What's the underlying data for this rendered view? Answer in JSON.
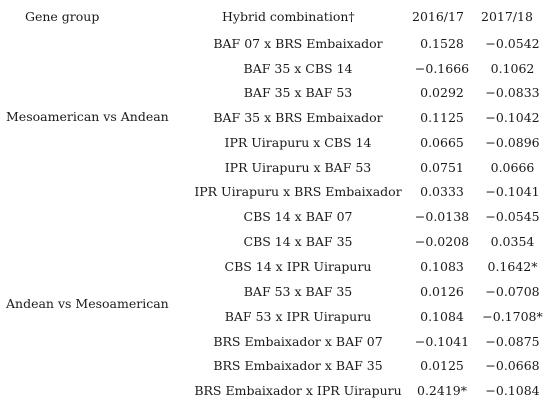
{
  "header": {
    "gene_group": "Gene group",
    "hybrid_combination": "Hybrid combination†",
    "year1": "2016/17",
    "year2": "2017/18"
  },
  "groups": [
    {
      "label": "Mesoamerican vs Andean"
    },
    {
      "label": "Andean vs Mesoamerican"
    }
  ],
  "rows": [
    {
      "hybrid": "BAF 07 x BRS Embaixador",
      "y1": "0.1528",
      "y2": "−0.0542"
    },
    {
      "hybrid": "BAF 35 x CBS 14",
      "y1": "−0.1666",
      "y2": "0.1062"
    },
    {
      "hybrid": "BAF 35 x BAF 53",
      "y1": "0.0292",
      "y2": "−0.0833"
    },
    {
      "hybrid": "BAF 35 x BRS Embaixador",
      "y1": "0.1125",
      "y2": "−0.1042"
    },
    {
      "hybrid": "IPR Uirapuru x CBS 14",
      "y1": "0.0665",
      "y2": "−0.0896"
    },
    {
      "hybrid": "IPR Uirapuru x BAF 53",
      "y1": "0.0751",
      "y2": "0.0666"
    },
    {
      "hybrid": "IPR Uirapuru x BRS Embaixador",
      "y1": "0.0333",
      "y2": "−0.1041"
    },
    {
      "hybrid": "CBS 14 x BAF 07",
      "y1": "−0.0138",
      "y2": "−0.0545"
    },
    {
      "hybrid": "CBS 14 x BAF 35",
      "y1": "−0.0208",
      "y2": "0.0354"
    },
    {
      "hybrid": "CBS 14 x IPR Uirapuru",
      "y1": "0.1083",
      "y2": "0.1642*"
    },
    {
      "hybrid": "BAF 53 x BAF 35",
      "y1": "0.0126",
      "y2": "−0.0708"
    },
    {
      "hybrid": "BAF 53 x IPR Uirapuru",
      "y1": "0.1084",
      "y2": "−0.1708*"
    },
    {
      "hybrid": "BRS Embaixador x BAF 07",
      "y1": "−0.1041",
      "y2": "−0.0875"
    },
    {
      "hybrid": "BRS Embaixador x BAF 35",
      "y1": "0.0125",
      "y2": "−0.0668"
    },
    {
      "hybrid": "BRS Embaixador x IPR Uirapuru",
      "y1": "0.2419*",
      "y2": "−0.1084"
    }
  ]
}
